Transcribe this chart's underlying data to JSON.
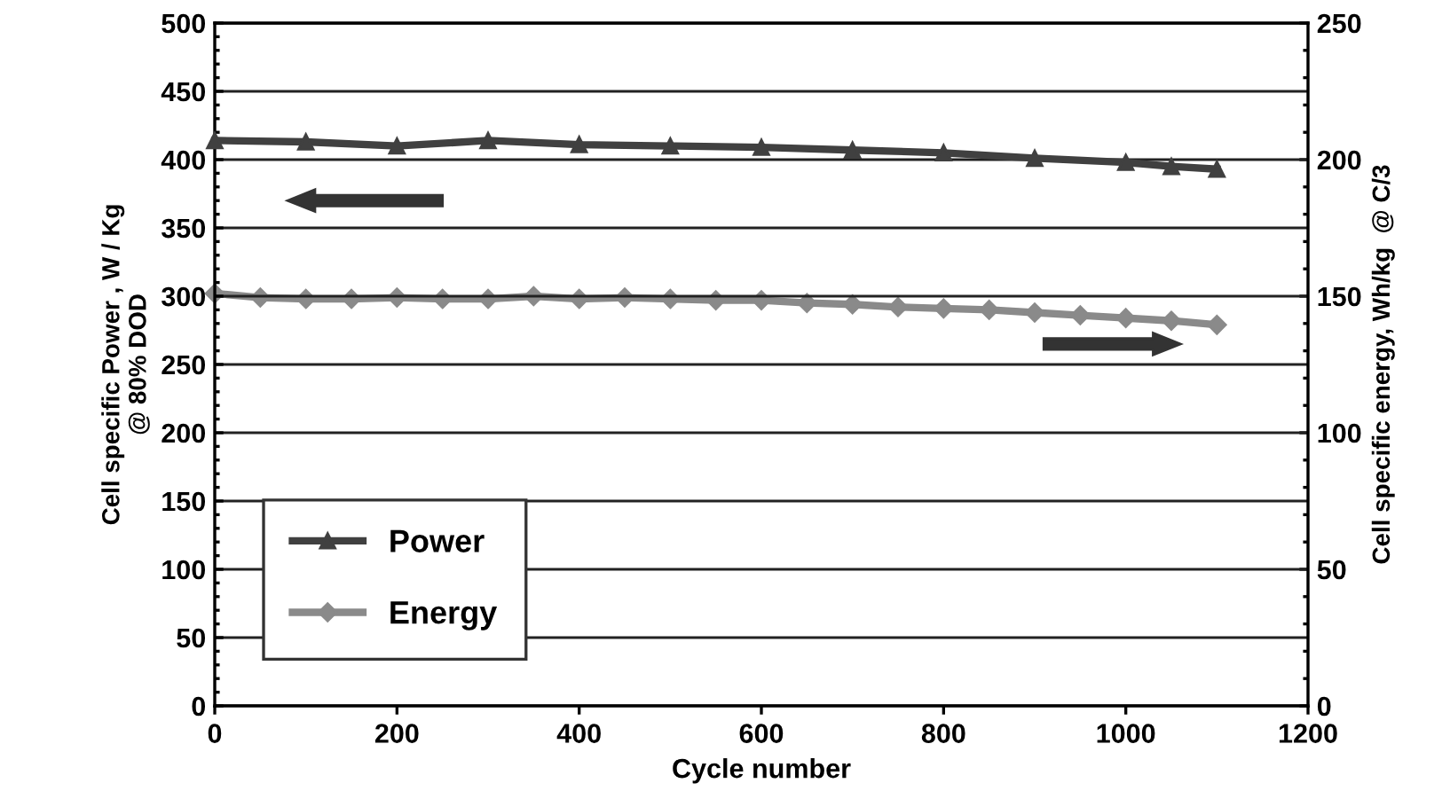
{
  "chart_data": {
    "type": "line",
    "xlabel": "Cycle number",
    "ylabel": "Cell specific Power , W / Kg\n@ 80% DOD",
    "y2label": "Cell specific energy, Wh/kg  @ C/3",
    "xlim": [
      0,
      1200
    ],
    "xticks": [
      0,
      200,
      400,
      600,
      800,
      1000,
      1200
    ],
    "ylim": [
      0,
      500
    ],
    "yticks": [
      0,
      50,
      100,
      150,
      200,
      250,
      300,
      350,
      400,
      450,
      500
    ],
    "y2lim": [
      0,
      250
    ],
    "y2ticks": [
      0,
      50,
      100,
      150,
      200,
      250
    ],
    "grid": "y",
    "legend": "bottom left",
    "line_style": "solid",
    "series": [
      {
        "name": "Power",
        "color": "#404040",
        "marker": "triangle",
        "x": [
          0,
          100,
          200,
          300,
          400,
          500,
          600,
          700,
          800,
          900,
          1000,
          1050,
          1100
        ],
        "values": [
          414,
          413,
          410,
          414,
          411,
          410,
          409,
          407,
          405,
          401,
          398,
          395,
          393
        ]
      },
      {
        "name": "Energy",
        "color": "#8a8a8a",
        "marker": "diamond",
        "axis": "y2",
        "x": [
          0,
          50,
          100,
          150,
          200,
          250,
          300,
          350,
          400,
          450,
          500,
          550,
          600,
          650,
          700,
          750,
          800,
          850,
          900,
          950,
          1000,
          1050,
          1100
        ],
        "values": [
          151,
          149.5,
          149,
          149,
          149.5,
          149,
          149,
          150,
          149,
          149.5,
          149,
          148.5,
          148.5,
          147.5,
          147,
          146,
          145.5,
          145,
          144,
          143,
          142,
          141,
          139.5
        ]
      }
    ]
  }
}
